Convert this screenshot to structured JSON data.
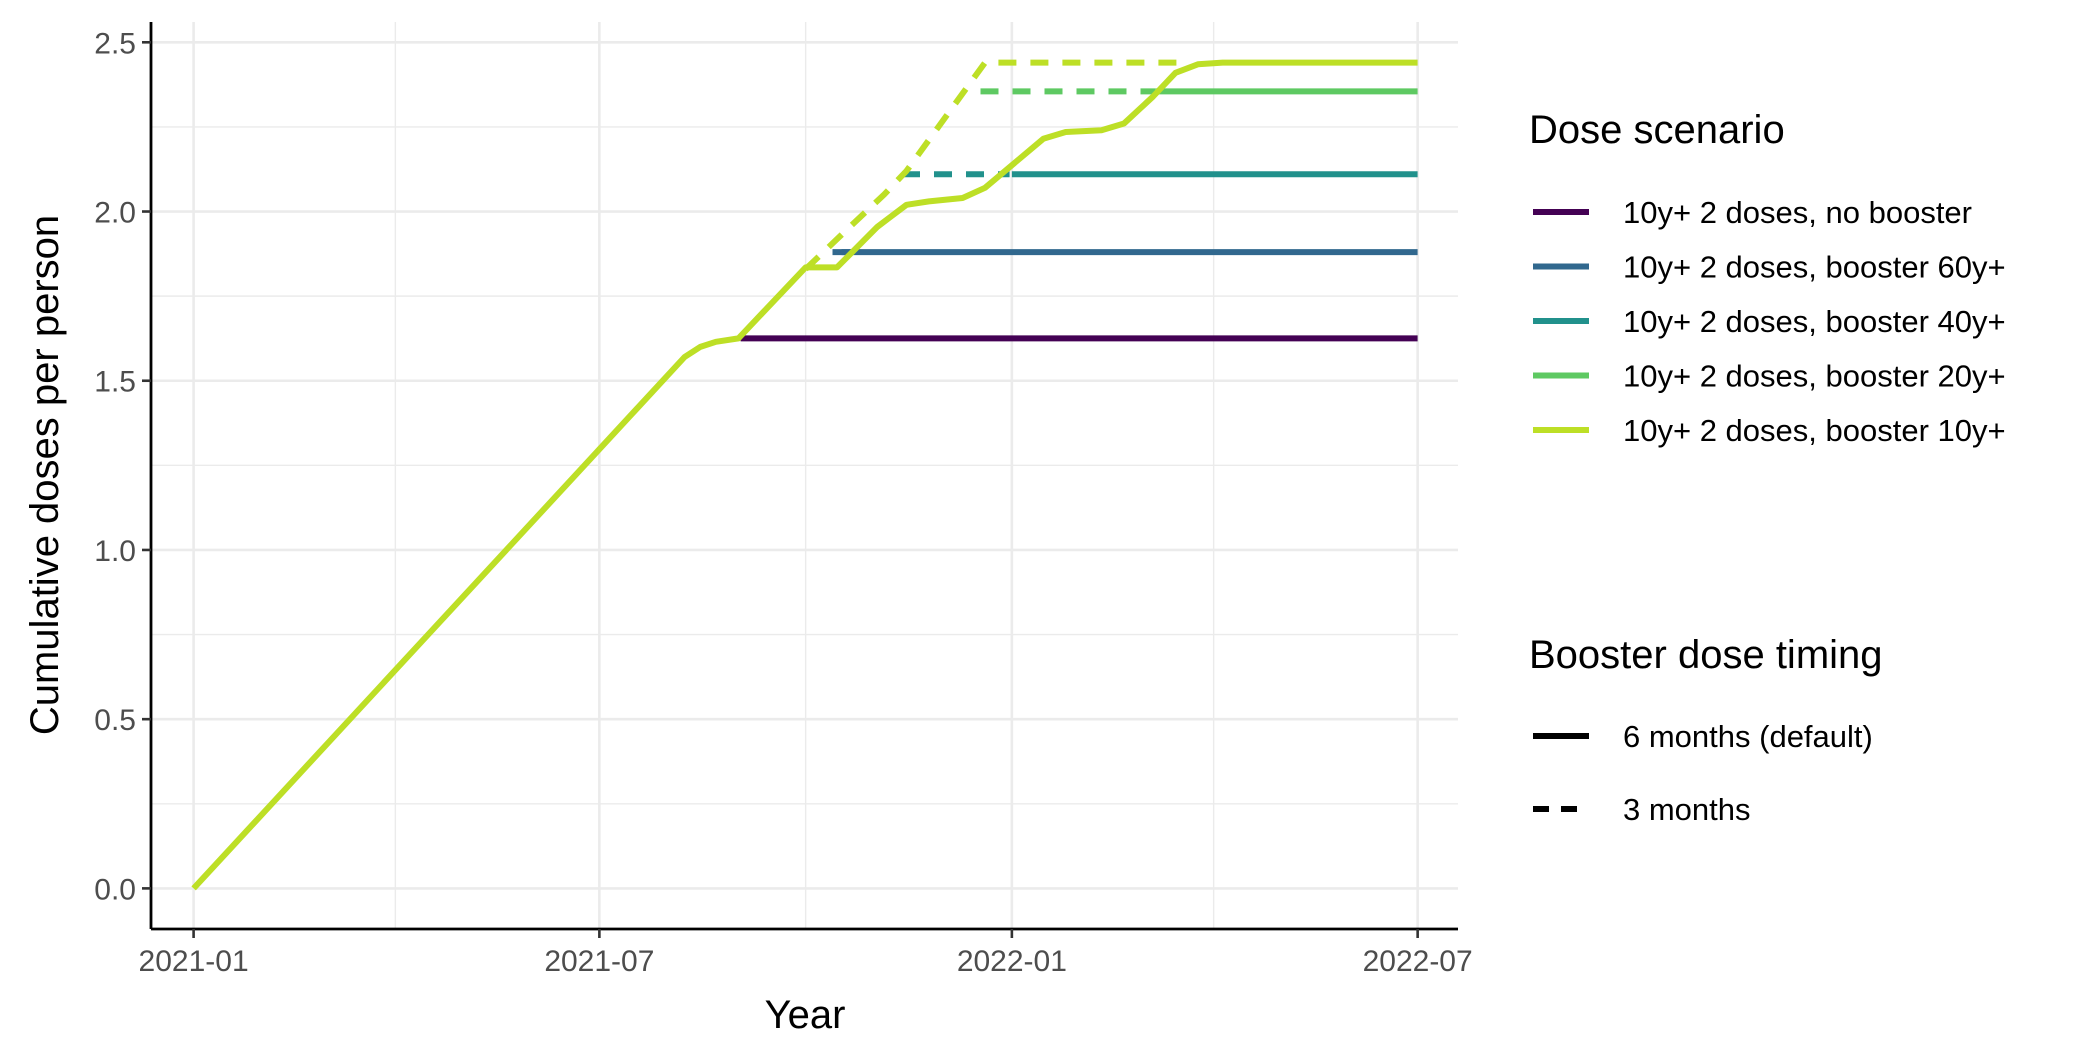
{
  "chart_data": {
    "type": "line",
    "title": "",
    "xlabel": "Year",
    "ylabel": "Cumulative doses per person",
    "xlim": [
      "2020-12-13",
      "2022-07-19"
    ],
    "ylim": [
      -0.12,
      2.56
    ],
    "x_ticks": [
      "2021-01",
      "2021-07",
      "2022-01",
      "2022-07"
    ],
    "y_ticks": [
      "0.0",
      "0.5",
      "1.0",
      "1.5",
      "2.0",
      "2.5"
    ],
    "grid": true,
    "legend_position": "right",
    "legends": [
      {
        "title": "Dose scenario",
        "entries": [
          {
            "label": "10y+ 2 doses, no booster",
            "color": "#440154"
          },
          {
            "label": "10y+ 2 doses, booster 60y+",
            "color": "#31688e"
          },
          {
            "label": "10y+ 2 doses, booster 40y+",
            "color": "#21918c"
          },
          {
            "label": "10y+ 2 doses, booster 20y+",
            "color": "#5ec962"
          },
          {
            "label": "10y+ 2 doses, booster 10y+",
            "color": "#bddf26"
          }
        ]
      },
      {
        "title": "Booster dose timing",
        "entries": [
          {
            "label": "6 months (default)",
            "dash": "solid",
            "color": "#000000"
          },
          {
            "label": "3 months",
            "dash": "dashed",
            "color": "#000000"
          }
        ]
      }
    ],
    "series": [
      {
        "scenario": "10y+ 2 doses, no booster",
        "timing": "6 months (default)",
        "color": "#440154",
        "dash": "solid",
        "points": [
          [
            "2021-09-02",
            1.625
          ],
          [
            "2022-07-01",
            1.625
          ]
        ]
      },
      {
        "scenario": "10y+ 2 doses, booster 60y+",
        "timing": "6 months (default)",
        "color": "#31688e",
        "dash": "solid",
        "points": [
          [
            "2021-10-17",
            1.88
          ],
          [
            "2022-07-01",
            1.88
          ]
        ]
      },
      {
        "scenario": "10y+ 2 doses, booster 60y+",
        "timing": "3 months",
        "color": "#31688e",
        "dash": "dashed",
        "points": [
          [
            "2021-10-13",
            1.88
          ],
          [
            "2021-10-22",
            1.88
          ]
        ]
      },
      {
        "scenario": "10y+ 2 doses, booster 40y+",
        "timing": "6 months (default)",
        "color": "#21918c",
        "dash": "solid",
        "points": [
          [
            "2022-01-01",
            2.11
          ],
          [
            "2022-07-01",
            2.11
          ]
        ]
      },
      {
        "scenario": "10y+ 2 doses, booster 40y+",
        "timing": "3 months",
        "color": "#21918c",
        "dash": "dashed",
        "points": [
          [
            "2021-11-13",
            2.11
          ],
          [
            "2021-12-31",
            2.11
          ]
        ]
      },
      {
        "scenario": "10y+ 2 doses, booster 20y+",
        "timing": "6 months (default)",
        "color": "#5ec962",
        "dash": "solid",
        "points": [
          [
            "2022-03-06",
            2.355
          ],
          [
            "2022-07-01",
            2.355
          ]
        ]
      },
      {
        "scenario": "10y+ 2 doses, booster 20y+",
        "timing": "3 months",
        "color": "#5ec962",
        "dash": "dashed",
        "points": [
          [
            "2021-12-18",
            2.355
          ],
          [
            "2022-03-06",
            2.355
          ]
        ]
      },
      {
        "scenario": "10y+ 2 doses, booster 10y+",
        "timing": "3 months",
        "color": "#bddf26",
        "dash": "dashed",
        "points": [
          [
            "2021-10-01",
            1.83
          ],
          [
            "2021-10-20",
            1.95
          ],
          [
            "2021-11-05",
            2.05
          ],
          [
            "2021-11-15",
            2.12
          ],
          [
            "2021-12-20",
            2.44
          ],
          [
            "2022-03-16",
            2.44
          ]
        ]
      },
      {
        "scenario": "10y+ 2 doses, booster 10y+",
        "timing": "6 months (default)",
        "color": "#bddf26",
        "dash": "solid",
        "points": [
          [
            "2021-01-01",
            0.0
          ],
          [
            "2021-08-08",
            1.57
          ],
          [
            "2021-08-15",
            1.6
          ],
          [
            "2021-08-22",
            1.615
          ],
          [
            "2021-09-01",
            1.625
          ],
          [
            "2021-10-01",
            1.835
          ],
          [
            "2021-10-15",
            1.835
          ],
          [
            "2021-11-02",
            1.955
          ],
          [
            "2021-11-15",
            2.02
          ],
          [
            "2021-11-25",
            2.03
          ],
          [
            "2021-12-10",
            2.04
          ],
          [
            "2021-12-20",
            2.07
          ],
          [
            "2022-01-15",
            2.215
          ],
          [
            "2022-01-25",
            2.235
          ],
          [
            "2022-02-10",
            2.24
          ],
          [
            "2022-02-20",
            2.26
          ],
          [
            "2022-03-05",
            2.34
          ],
          [
            "2022-03-15",
            2.41
          ],
          [
            "2022-03-25",
            2.435
          ],
          [
            "2022-04-05",
            2.44
          ],
          [
            "2022-07-01",
            2.44
          ]
        ]
      }
    ]
  }
}
